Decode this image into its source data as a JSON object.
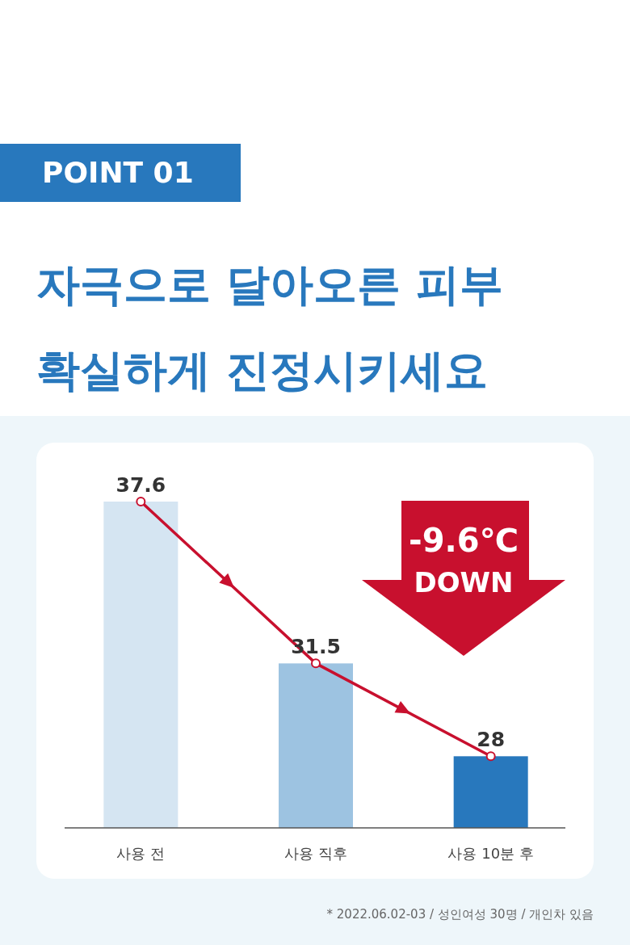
{
  "chart_data": {
    "type": "bar",
    "title": "POINT 01",
    "subtitle": "자극으로 달아오른 피부 확실하게 진정시키세요",
    "categories": [
      "사용 전",
      "사용 직후",
      "사용 10분 후"
    ],
    "series": [
      {
        "colors": [
          "#d5e5f2",
          "#9dc3e1",
          "#2878bd"
        ],
        "values": [
          37.6,
          31.5,
          28
        ]
      },
      {
        "type": "line",
        "color": "#c8102e",
        "values": [
          37.6,
          31.5,
          28
        ],
        "value_labels": [
          "37.6",
          "31.5",
          "28"
        ]
      }
    ],
    "ylim": [
      25.3,
      37.6
    ],
    "marker": "circle",
    "line_style": "solid",
    "annotations": [
      "-9.6℃ DOWN",
      "* 2022.06.02-03 / 성인여성 30명 / 개인차 있음"
    ]
  }
}
